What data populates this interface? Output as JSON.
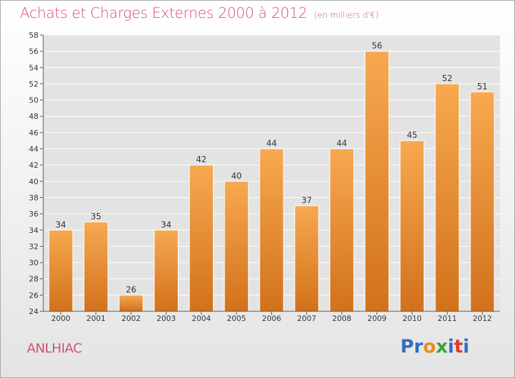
{
  "chart_data": {
    "type": "bar",
    "title": "Achats et Charges Externes 2000 à 2012",
    "subtitle": "(en milliers d'€)",
    "categories": [
      "2000",
      "2001",
      "2002",
      "2003",
      "2004",
      "2005",
      "2006",
      "2007",
      "2008",
      "2009",
      "2010",
      "2011",
      "2012"
    ],
    "values": [
      34,
      35,
      26,
      34,
      42,
      40,
      44,
      37,
      44,
      56,
      45,
      52,
      51
    ],
    "ylim": [
      24,
      58
    ],
    "yticks": [
      24,
      26,
      28,
      30,
      32,
      34,
      36,
      38,
      40,
      42,
      44,
      46,
      48,
      50,
      52,
      54,
      56,
      58
    ],
    "xlabel": "",
    "ylabel": "",
    "grid": "horizontal",
    "bar_color_top": "#f7a950",
    "bar_color_bottom": "#d2711c"
  },
  "commune": "ANLHIAC",
  "logo": {
    "text": "Proxiti",
    "letters": [
      {
        "char": "P",
        "color": "#2f6fc0"
      },
      {
        "char": "r",
        "color": "#2f6fc0"
      },
      {
        "char": "o",
        "color": "#f08a1c"
      },
      {
        "char": "x",
        "color": "#3aa539"
      },
      {
        "char": "i",
        "color": "#2f6fc0"
      },
      {
        "char": "t",
        "color": "#e03a2c"
      },
      {
        "char": "i",
        "color": "#2f6fc0"
      }
    ]
  },
  "colors": {
    "accent": "#d65070",
    "axis": "#555555",
    "grid": "#ffffff"
  }
}
